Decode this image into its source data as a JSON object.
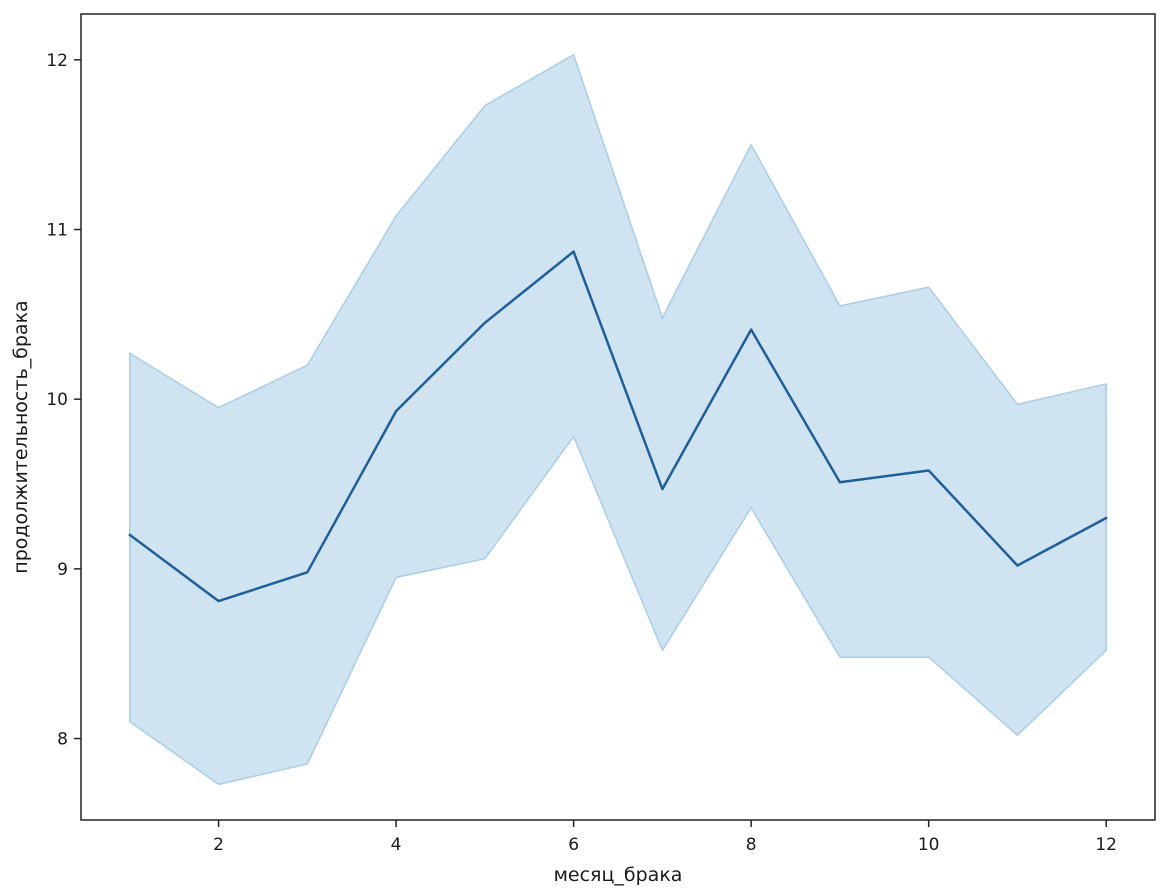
{
  "chart_data": {
    "type": "line",
    "title": "",
    "xlabel": "месяц_брака",
    "ylabel": "продолжительность_брака",
    "xlim": [
      0.45,
      12.55
    ],
    "ylim": [
      7.52,
      12.27
    ],
    "x_ticks": [
      2,
      4,
      6,
      8,
      10,
      12
    ],
    "y_ticks": [
      8,
      9,
      10,
      11,
      12
    ],
    "grid": false,
    "legend": "none",
    "series": [
      {
        "x": [
          1,
          2,
          3,
          4,
          5,
          6,
          7,
          8,
          9,
          10,
          11,
          12
        ],
        "values": [
          9.2,
          8.81,
          8.98,
          9.93,
          10.45,
          10.87,
          9.47,
          10.41,
          9.51,
          9.58,
          9.02,
          9.3
        ],
        "ci_upper": [
          10.27,
          9.95,
          10.2,
          11.08,
          11.73,
          12.03,
          10.48,
          11.5,
          10.55,
          10.66,
          9.97,
          10.09
        ],
        "ci_lower": [
          8.1,
          7.73,
          7.85,
          8.95,
          9.06,
          9.78,
          8.52,
          9.36,
          8.48,
          8.48,
          8.02,
          8.52
        ]
      }
    ],
    "colors": {
      "line": "#1f5f9a",
      "band_fill": "#cfe3f0",
      "band_edge": "#a9cde6",
      "axes": "#222222"
    }
  }
}
